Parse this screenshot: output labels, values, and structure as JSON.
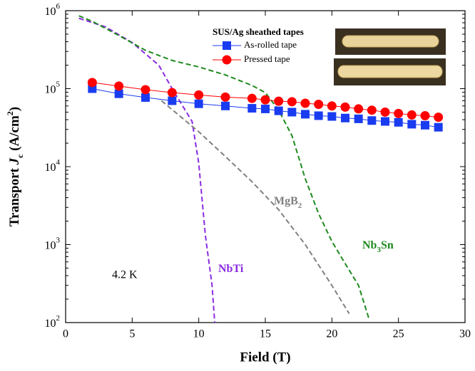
{
  "chart_data": {
    "type": "line",
    "x_label": "Field (T)",
    "y_label": [
      "Transport ",
      "J",
      "c",
      " (A/cm",
      "2",
      ")"
    ],
    "xlim": [
      0,
      30
    ],
    "xticks": [
      0,
      5,
      10,
      15,
      20,
      25,
      30
    ],
    "ylim": [
      100,
      1000000
    ],
    "log_y": true,
    "yticks": [
      {
        "value": 100,
        "label": "10",
        "exponent": "2"
      },
      {
        "value": 1000,
        "label": "10",
        "exponent": "3"
      },
      {
        "value": 10000,
        "label": "10",
        "exponent": "4"
      },
      {
        "value": 100000,
        "label": "10",
        "exponent": "5"
      },
      {
        "value": 1000000,
        "label": "10",
        "exponent": "6"
      }
    ],
    "legend_title": "SUS/Ag sheathed tapes",
    "legend_position": "upper right",
    "series": [
      {
        "name": "As-rolled tape",
        "color": "#1a3cf0",
        "marker": "square",
        "x": [
          2,
          4,
          6,
          8,
          10,
          12,
          14,
          15,
          16,
          17,
          18,
          19,
          20,
          21,
          22,
          23,
          24,
          25,
          26,
          27,
          28
        ],
        "values": [
          100000,
          86000,
          77000,
          70000,
          64000,
          60000,
          56000,
          55000,
          52000,
          50000,
          47000,
          45000,
          44000,
          42000,
          41000,
          39000,
          38000,
          37000,
          35000,
          34000,
          32000
        ]
      },
      {
        "name": "Pressed tape",
        "color": "#ff0000",
        "marker": "circle",
        "x": [
          2,
          4,
          6,
          8,
          10,
          12,
          14,
          15,
          16,
          17,
          18,
          19,
          20,
          21,
          22,
          23,
          24,
          25,
          26,
          27,
          28
        ],
        "values": [
          120000,
          108000,
          97000,
          89000,
          83000,
          78000,
          75000,
          72000,
          69000,
          68000,
          65000,
          63000,
          60000,
          58000,
          55000,
          53000,
          50000,
          48000,
          46000,
          45000,
          43000
        ]
      }
    ],
    "curves": [
      {
        "name": [
          "NbTi"
        ],
        "color": "#8a2be2",
        "x": [
          1,
          3,
          5,
          7,
          8,
          9.5,
          10,
          10.5,
          11,
          11.2
        ],
        "values": [
          800000,
          620000,
          390000,
          200000,
          100000,
          38000,
          11000,
          1300,
          300,
          100
        ]
      },
      {
        "name": [
          "MgB",
          "2"
        ],
        "color": "#808080",
        "x": [
          7.2,
          10,
          12,
          14,
          16,
          18,
          20,
          21.3
        ],
        "values": [
          70000,
          28000,
          13500,
          6400,
          2800,
          1000,
          300,
          130
        ]
      },
      {
        "name": [
          "Nb",
          "3",
          "Sn"
        ],
        "color": "#1e8a1e",
        "x": [
          1,
          2,
          4,
          6,
          8,
          10,
          12,
          14,
          15,
          16,
          17,
          18,
          19,
          20,
          21,
          22,
          22.8
        ],
        "values": [
          860000,
          730000,
          480000,
          310000,
          230000,
          190000,
          150000,
          110000,
          89000,
          53000,
          25000,
          7000,
          2500,
          1100,
          570,
          300,
          110
        ]
      }
    ],
    "annotation": "4.2 K"
  }
}
